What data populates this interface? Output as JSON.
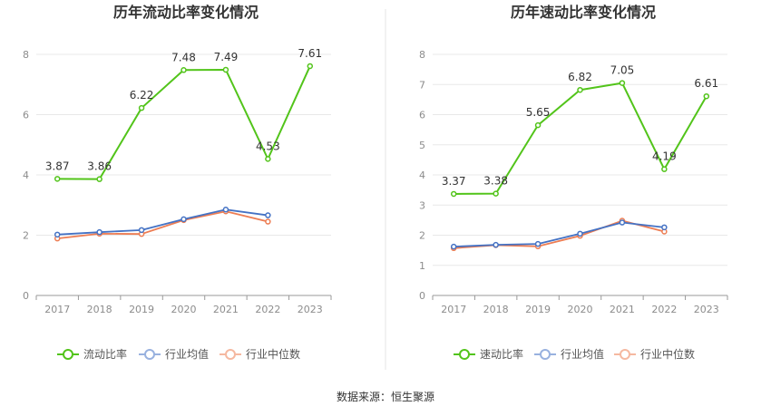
{
  "source": "数据来源：恒生聚源",
  "chart_data": [
    {
      "type": "line",
      "title": "历年流动比率变化情况",
      "categories": [
        "2017",
        "2018",
        "2019",
        "2020",
        "2021",
        "2022",
        "2023"
      ],
      "ylim": [
        0,
        8
      ],
      "yticks": [
        0,
        2,
        4,
        6,
        8
      ],
      "grid": true,
      "legend": "bottom",
      "series": [
        {
          "name": "流动比率",
          "color": "#52c41a",
          "values": [
            3.87,
            3.86,
            6.22,
            7.48,
            7.49,
            4.53,
            7.61
          ],
          "labels": [
            "3.87",
            "3.86",
            "6.22",
            "7.48",
            "7.49",
            "4.53",
            "7.61"
          ]
        },
        {
          "name": "行业均值",
          "color": "#4472c4",
          "values": [
            2.02,
            2.1,
            2.17,
            2.53,
            2.85,
            2.66,
            null
          ]
        },
        {
          "name": "行业中位数",
          "color": "#ed7d53",
          "values": [
            1.89,
            2.05,
            2.04,
            2.5,
            2.79,
            2.45,
            null
          ]
        }
      ]
    },
    {
      "type": "line",
      "title": "历年速动比率变化情况",
      "categories": [
        "2017",
        "2018",
        "2019",
        "2020",
        "2021",
        "2022",
        "2023"
      ],
      "ylim": [
        0,
        8
      ],
      "yticks": [
        0,
        1,
        2,
        3,
        4,
        5,
        6,
        7,
        8
      ],
      "grid": true,
      "legend": "bottom",
      "series": [
        {
          "name": "速动比率",
          "color": "#52c41a",
          "values": [
            3.37,
            3.38,
            5.65,
            6.82,
            7.05,
            4.19,
            6.61
          ],
          "labels": [
            "3.37",
            "3.38",
            "5.65",
            "6.82",
            "7.05",
            "4.19",
            "6.61"
          ]
        },
        {
          "name": "行业均值",
          "color": "#4472c4",
          "values": [
            1.62,
            1.68,
            1.71,
            2.05,
            2.42,
            2.26,
            null
          ]
        },
        {
          "name": "行业中位数",
          "color": "#ed7d53",
          "values": [
            1.57,
            1.67,
            1.63,
            1.98,
            2.48,
            2.12,
            null
          ]
        }
      ]
    }
  ]
}
